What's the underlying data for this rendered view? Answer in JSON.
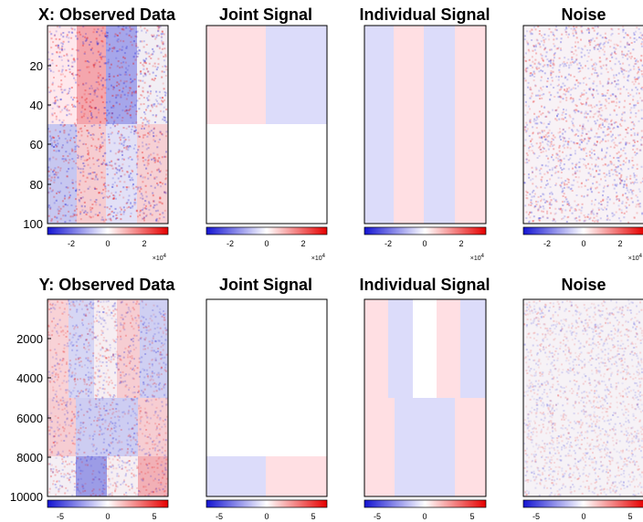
{
  "colors": {
    "neg": "#1414d2",
    "mid": "#ffffff",
    "pos": "#e60000"
  },
  "rows": [
    {
      "key": "X",
      "y_ticks": [
        20,
        40,
        60,
        80,
        100
      ],
      "y_range": [
        0,
        100
      ],
      "cb_ticks": [
        "-2",
        "0",
        "2"
      ],
      "cb_exponent": "×10",
      "cb_exponent_power": "4",
      "panels": [
        {
          "title": "X: Observed Data",
          "kind": "observed"
        },
        {
          "title": "Joint Signal",
          "kind": "joint"
        },
        {
          "title": "Individual Signal",
          "kind": "individual"
        },
        {
          "title": "Noise",
          "kind": "noise"
        }
      ]
    },
    {
      "key": "Y",
      "y_ticks": [
        2000,
        4000,
        6000,
        8000,
        10000
      ],
      "y_range": [
        0,
        10000
      ],
      "cb_ticks": [
        "-5",
        "0",
        "5"
      ],
      "cb_exponent": "",
      "cb_exponent_power": "",
      "panels": [
        {
          "title": "Y: Observed Data",
          "kind": "observed"
        },
        {
          "title": "Joint Signal",
          "kind": "joint"
        },
        {
          "title": "Individual Signal",
          "kind": "individual"
        },
        {
          "title": "Noise",
          "kind": "noise"
        }
      ]
    }
  ]
}
